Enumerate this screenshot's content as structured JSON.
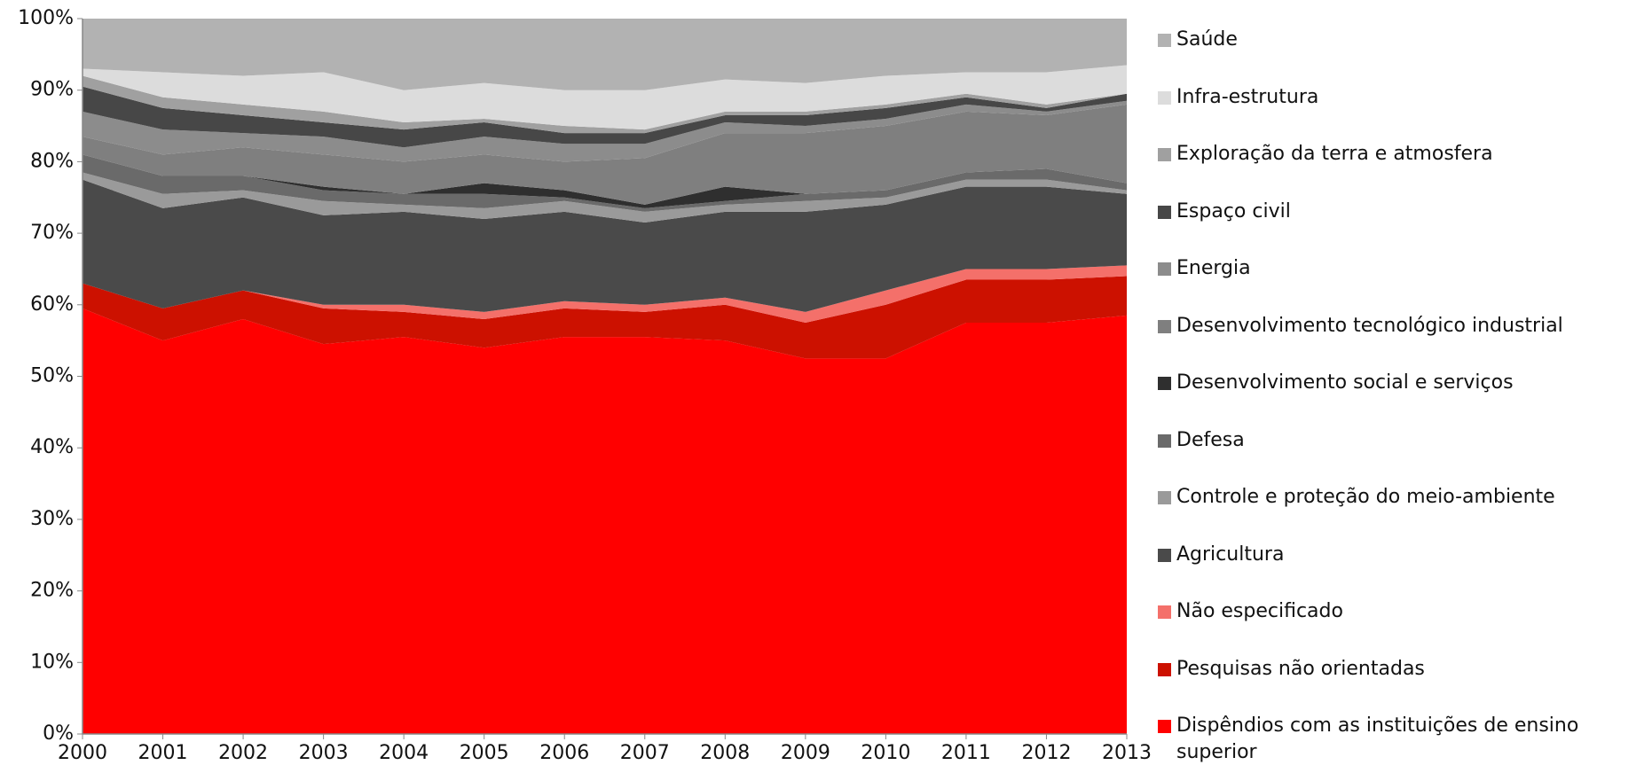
{
  "chart_data": {
    "type": "area",
    "categories": [
      "2000",
      "2001",
      "2002",
      "2003",
      "2004",
      "2005",
      "2006",
      "2007",
      "2008",
      "2009",
      "2010",
      "2011",
      "2012",
      "2013"
    ],
    "ylim": [
      0,
      100
    ],
    "yticks": [
      {
        "value": 0,
        "label": "0%"
      },
      {
        "value": 10,
        "label": "10%"
      },
      {
        "value": 20,
        "label": "20%"
      },
      {
        "value": 30,
        "label": "30%"
      },
      {
        "value": 40,
        "label": "40%"
      },
      {
        "value": 50,
        "label": "50%"
      },
      {
        "value": 60,
        "label": "60%"
      },
      {
        "value": 70,
        "label": "70%"
      },
      {
        "value": 80,
        "label": "80%"
      },
      {
        "value": 90,
        "label": "90%"
      },
      {
        "value": 100,
        "label": "100%"
      }
    ],
    "stacked": true,
    "series": [
      {
        "name": "Dispêndios com as instituições de ensino superior",
        "color": "#ff0000",
        "values": [
          59.5,
          55,
          58,
          54.5,
          55.5,
          54,
          55.5,
          55.5,
          55,
          52.5,
          52.5,
          57.5,
          57.5,
          58.5
        ]
      },
      {
        "name": "Pesquisas não orientadas",
        "color": "#cc1100",
        "values": [
          3.5,
          4.5,
          4,
          5,
          3.5,
          4,
          4,
          3.5,
          5,
          5,
          7.5,
          6,
          6,
          5.5
        ]
      },
      {
        "name": "Não especificado",
        "color": "#f4706a",
        "values": [
          0,
          0,
          0,
          0.5,
          1,
          1,
          1,
          1,
          1,
          1.5,
          2,
          1.5,
          1.5,
          1.5
        ]
      },
      {
        "name": "Agricultura",
        "color": "#4a4a4a",
        "values": [
          14.5,
          14,
          13,
          12.5,
          13,
          13,
          12.5,
          11.5,
          12,
          14,
          12,
          11.5,
          11.5,
          10
        ]
      },
      {
        "name": "Controle e proteção do meio-ambiente",
        "color": "#9a9a9a",
        "values": [
          1,
          2,
          1,
          2,
          1,
          1.5,
          1.5,
          1.5,
          1,
          1.5,
          1,
          1,
          1,
          0.5
        ]
      },
      {
        "name": "Defesa",
        "color": "#6a6a6a",
        "values": [
          2.5,
          2.5,
          2,
          1.5,
          1.5,
          2,
          0.5,
          0.5,
          0.5,
          1,
          1,
          1,
          1.5,
          1
        ]
      },
      {
        "name": "Desenvolvimento social e serviços",
        "color": "#2f2f2f",
        "values": [
          0,
          0,
          0,
          0.5,
          0,
          1.5,
          1,
          0.5,
          2,
          0,
          0,
          0,
          0,
          0
        ]
      },
      {
        "name": "Desenvolvimento tecnológico industrial",
        "color": "#7f7f7f",
        "values": [
          2.5,
          3,
          4,
          4.5,
          4.5,
          4,
          4,
          6.5,
          7.5,
          8.5,
          9,
          8.5,
          7.5,
          11
        ]
      },
      {
        "name": "Energia",
        "color": "#8c8c8c",
        "values": [
          3.5,
          3.5,
          2,
          2.5,
          2,
          2.5,
          2.5,
          2,
          1.5,
          1,
          1,
          1,
          0.5,
          0.5
        ]
      },
      {
        "name": "Espaço civil",
        "color": "#474747",
        "values": [
          3.5,
          3,
          2.5,
          2,
          2.5,
          2,
          1.5,
          1.5,
          1,
          1.5,
          1.5,
          1,
          0.5,
          1
        ]
      },
      {
        "name": "Exploração da terra e atmosfera",
        "color": "#a0a0a0",
        "values": [
          1.5,
          1.5,
          1.5,
          1.5,
          1,
          0.5,
          1,
          0.5,
          0.5,
          0.5,
          0.5,
          0.5,
          0.5,
          0
        ]
      },
      {
        "name": "Infra-estrutura",
        "color": "#dcdcdc",
        "values": [
          1,
          3.5,
          4,
          5.5,
          4.5,
          5,
          5,
          5.5,
          4.5,
          4,
          4,
          3,
          4.5,
          4
        ]
      },
      {
        "name": "Saúde",
        "color": "#b2b2b2",
        "values": [
          7,
          7.5,
          8,
          7.5,
          10,
          9,
          10,
          10,
          8.5,
          9,
          8,
          7.5,
          7.5,
          6.5
        ]
      }
    ]
  }
}
